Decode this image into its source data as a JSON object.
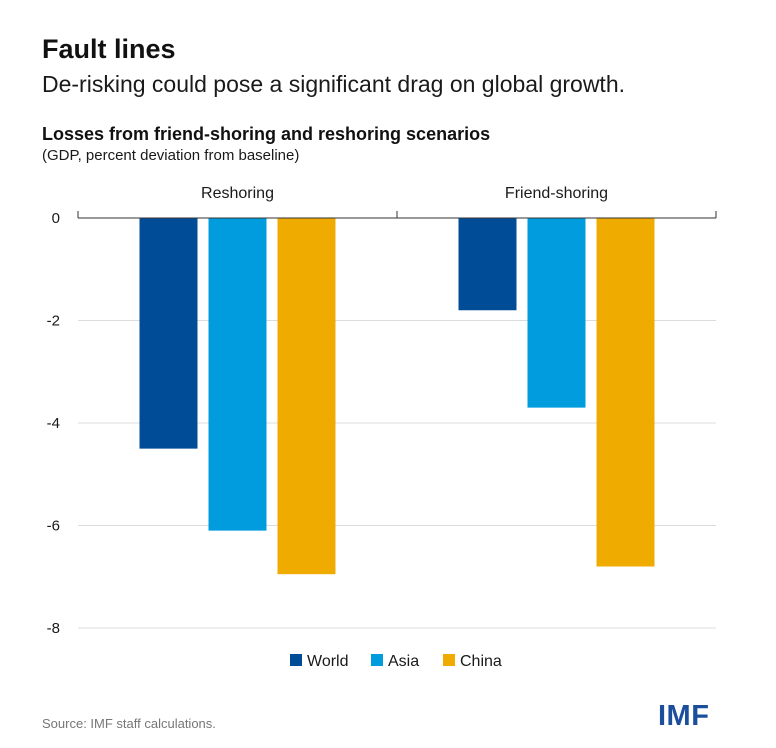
{
  "header": {
    "headline": "Fault lines",
    "subhead": "De-risking could pose a significant drag on global growth."
  },
  "colors": {
    "World": "#004C97",
    "Asia": "#009CDE",
    "China": "#F0AB00",
    "grid": "#dcdcdc",
    "axis": "#333333"
  },
  "chart_data": {
    "type": "bar",
    "title": "Losses from friend-shoring and reshoring scenarios",
    "subtitle": "(GDP, percent deviation from baseline)",
    "categories": [
      "Reshoring",
      "Friend-shoring"
    ],
    "series": [
      {
        "name": "World",
        "values": [
          -4.5,
          -1.8
        ]
      },
      {
        "name": "Asia",
        "values": [
          -6.1,
          -3.7
        ]
      },
      {
        "name": "China",
        "values": [
          -6.95,
          -6.8
        ]
      }
    ],
    "ylim": [
      -8,
      0
    ],
    "yticks": [
      0,
      -2,
      -4,
      -6,
      -8
    ],
    "ytick_labels": [
      "0",
      "-2",
      "-4",
      "-6",
      "-8"
    ],
    "grid": true,
    "legend_position": "bottom-center",
    "xlabel": "",
    "ylabel": ""
  },
  "footer": {
    "source": "Source: IMF staff calculations.",
    "logo_text": "IMF"
  }
}
